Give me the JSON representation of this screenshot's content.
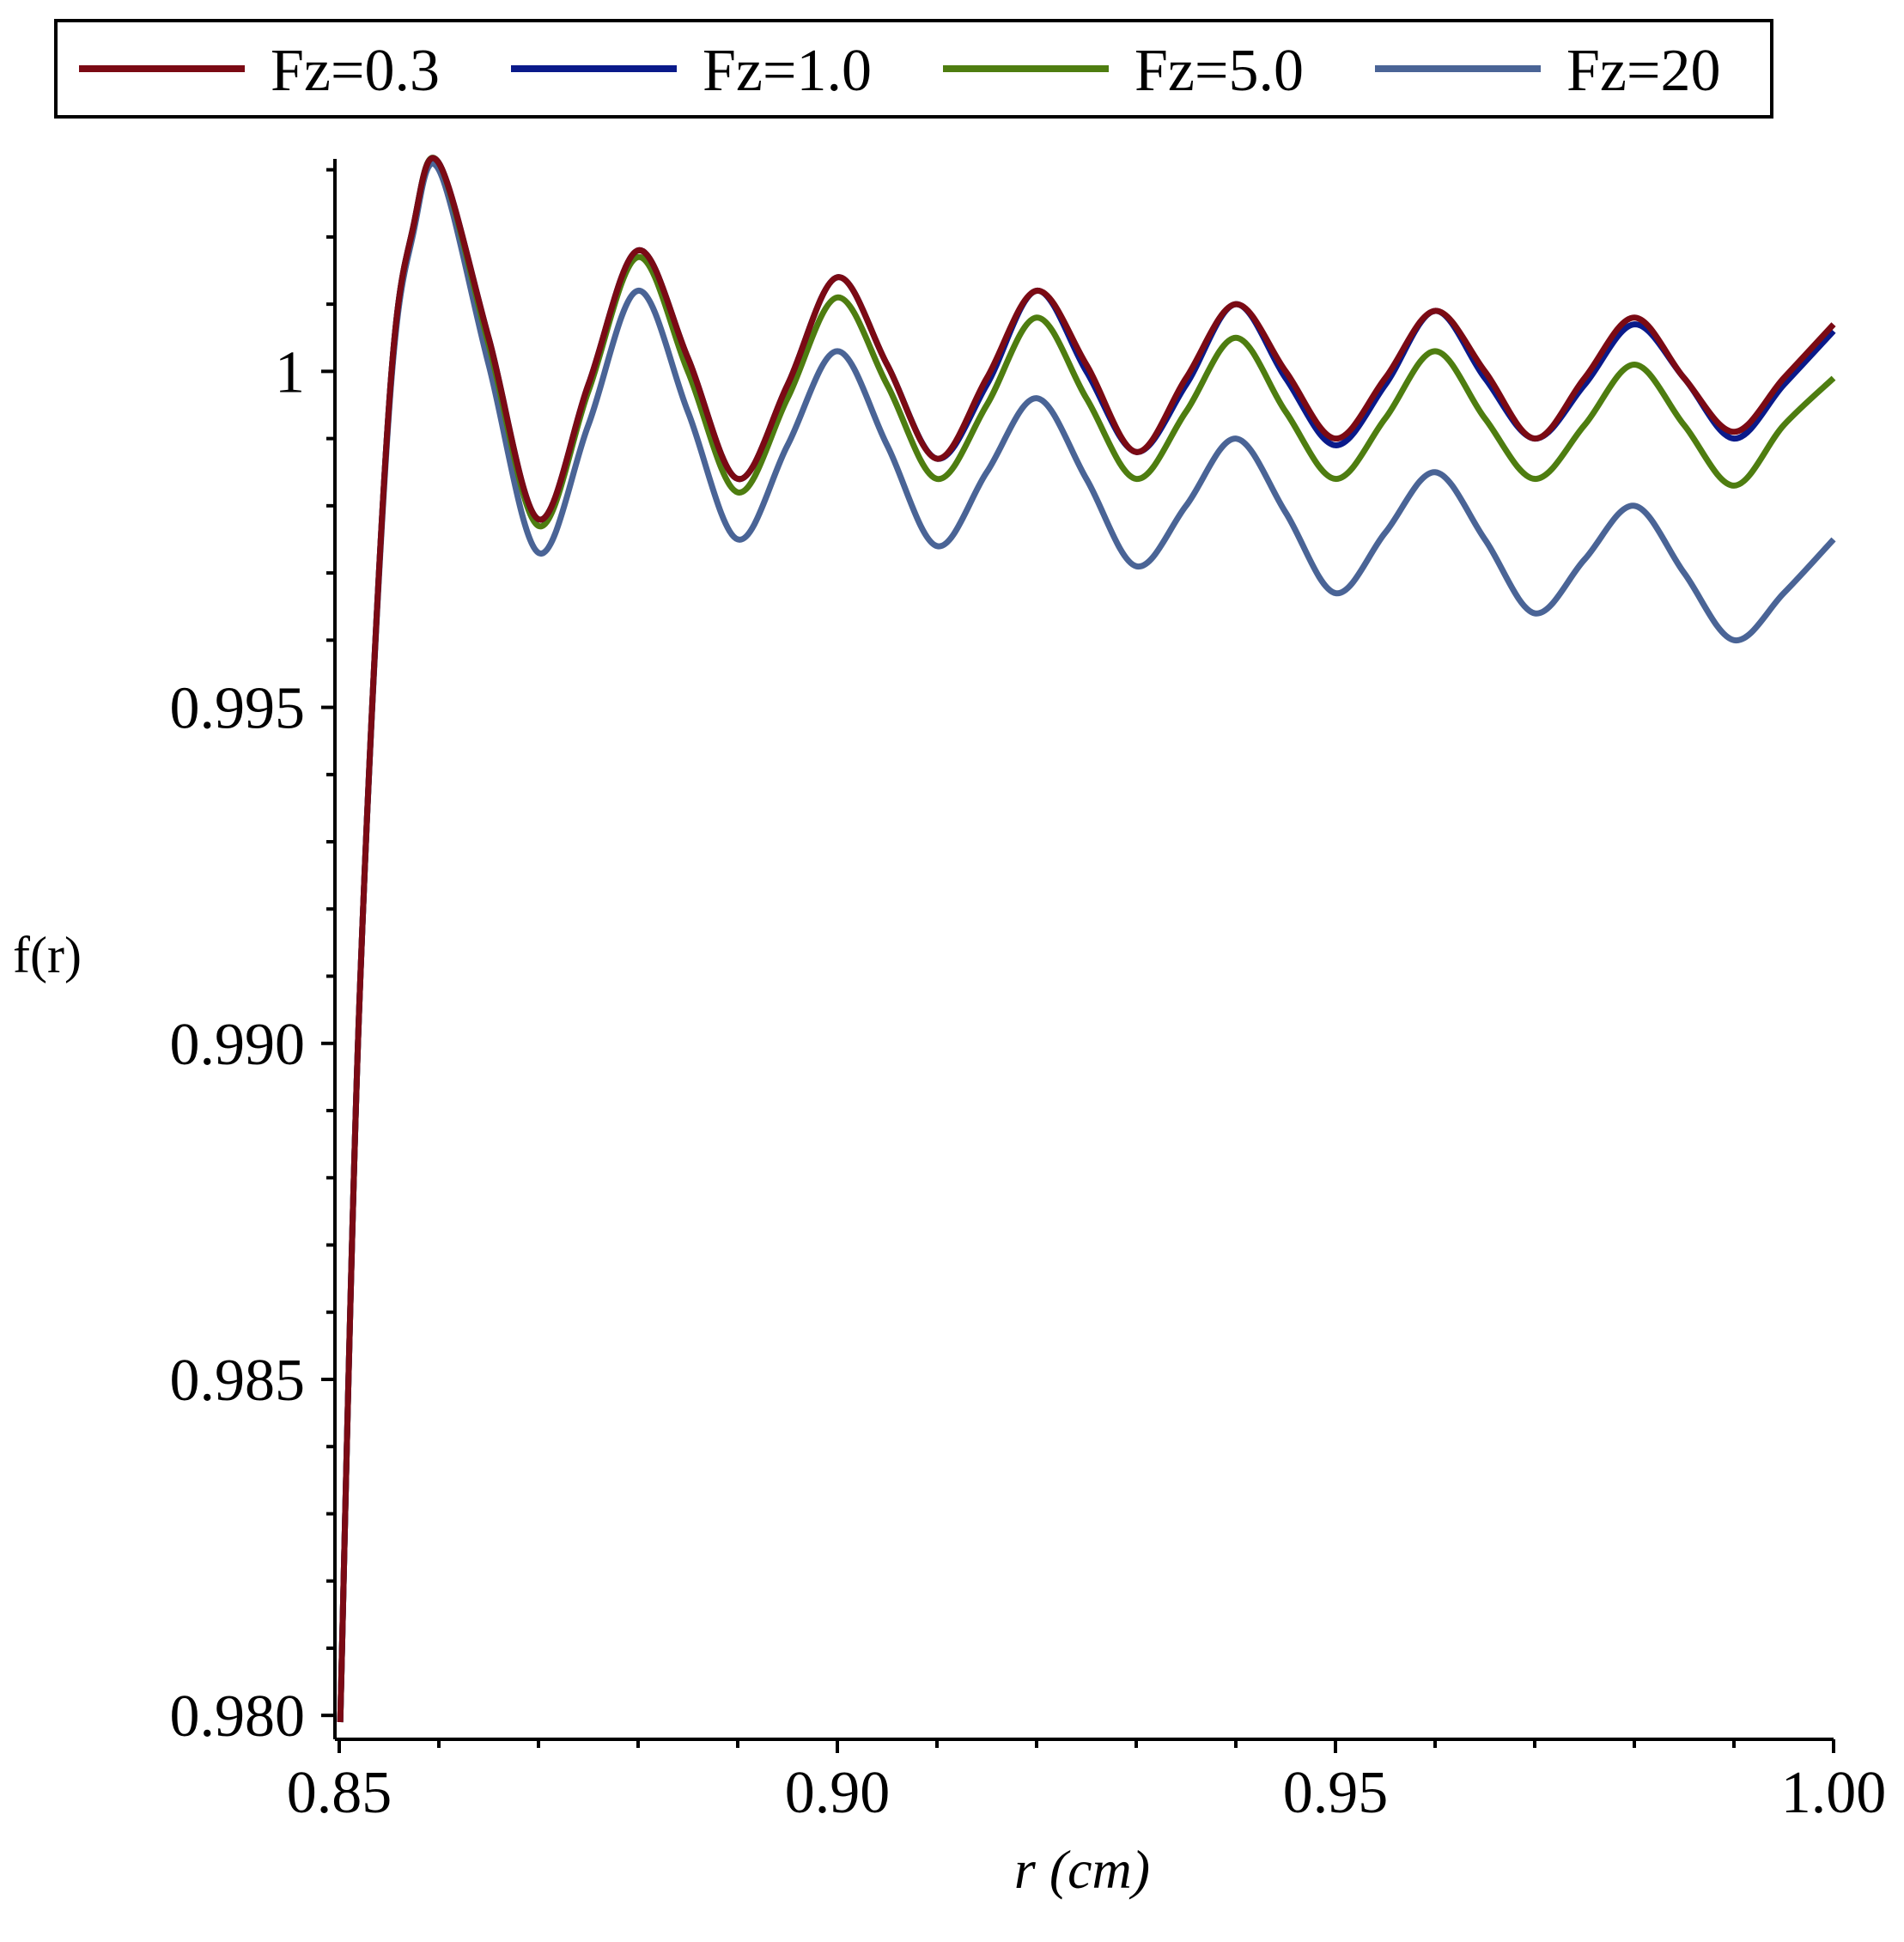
{
  "chart_data": {
    "type": "line",
    "title": "",
    "xlabel": "r (cm)",
    "ylabel": "f(r)",
    "xlim": [
      0.85,
      1.0
    ],
    "ylim": [
      0.9799,
      1.0032
    ],
    "x_ticks": [
      0.85,
      0.9,
      0.95,
      1.0
    ],
    "x_tick_labels": [
      "0.85",
      "0.90",
      "0.95",
      "1.00"
    ],
    "y_ticks": [
      0.98,
      0.985,
      0.99,
      0.995,
      1.0
    ],
    "y_tick_labels": [
      "0.980",
      "0.985",
      "0.990",
      "0.995",
      "1"
    ],
    "legend_position": "top",
    "grid": false,
    "series": [
      {
        "name": "Fz=0.3",
        "color": "#7b0a14",
        "x": [
          0.8501,
          0.852,
          0.855,
          0.8575,
          0.86,
          0.865,
          0.87,
          0.875,
          0.88,
          0.885,
          0.89,
          0.895,
          0.9,
          0.905,
          0.91,
          0.915,
          0.92,
          0.925,
          0.93,
          0.935,
          0.94,
          0.945,
          0.95,
          0.955,
          0.96,
          0.965,
          0.97,
          0.975,
          0.98,
          0.985,
          0.99,
          0.995,
          1.0
        ],
        "y": [
          0.9799,
          0.9905,
          0.9995,
          1.0022,
          1.0031,
          1.0005,
          0.9978,
          0.9998,
          1.0018,
          1.0002,
          0.9984,
          0.9998,
          1.0014,
          1.0001,
          0.9987,
          0.9999,
          1.0012,
          1.0001,
          0.9988,
          0.9999,
          1.001,
          1.0,
          0.999,
          0.9999,
          1.0009,
          1.0,
          0.999,
          0.9999,
          1.0008,
          0.9999,
          0.9991,
          0.9999,
          1.0007
        ]
      },
      {
        "name": "Fz=1.0",
        "color": "#0a1a8a",
        "x": [
          0.8501,
          0.852,
          0.855,
          0.8575,
          0.86,
          0.865,
          0.87,
          0.875,
          0.88,
          0.885,
          0.89,
          0.895,
          0.9,
          0.905,
          0.91,
          0.915,
          0.92,
          0.925,
          0.93,
          0.935,
          0.94,
          0.945,
          0.95,
          0.955,
          0.96,
          0.965,
          0.97,
          0.975,
          0.98,
          0.985,
          0.99,
          0.995,
          1.0
        ],
        "y": [
          0.9799,
          0.9905,
          0.9995,
          1.0022,
          1.0031,
          1.0005,
          0.9978,
          0.9998,
          1.0018,
          1.0002,
          0.9984,
          0.9998,
          1.0014,
          1.0001,
          0.9987,
          0.9998,
          1.0012,
          1.0,
          0.9988,
          0.9998,
          1.001,
          0.9999,
          0.9989,
          0.9998,
          1.0009,
          0.9999,
          0.999,
          0.9998,
          1.0007,
          0.9999,
          0.999,
          0.9998,
          1.0006
        ]
      },
      {
        "name": "Fz=5.0",
        "color": "#4e7d10",
        "x": [
          0.8501,
          0.852,
          0.855,
          0.8575,
          0.86,
          0.865,
          0.87,
          0.875,
          0.88,
          0.885,
          0.89,
          0.895,
          0.9,
          0.905,
          0.91,
          0.915,
          0.92,
          0.925,
          0.93,
          0.935,
          0.94,
          0.945,
          0.95,
          0.955,
          0.96,
          0.965,
          0.97,
          0.975,
          0.98,
          0.985,
          0.99,
          0.995,
          1.0
        ],
        "y": [
          0.9799,
          0.9905,
          0.9995,
          1.0022,
          1.0031,
          1.0004,
          0.9977,
          0.9997,
          1.0017,
          1.0,
          0.9982,
          0.9996,
          1.0011,
          0.9998,
          0.9984,
          0.9995,
          1.0008,
          0.9996,
          0.9984,
          0.9994,
          1.0005,
          0.9994,
          0.9984,
          0.9993,
          1.0003,
          0.9993,
          0.9984,
          0.9992,
          1.0001,
          0.9992,
          0.9983,
          0.9992,
          0.9999
        ]
      },
      {
        "name": "Fz=20",
        "color": "#4a6496",
        "x": [
          0.8501,
          0.852,
          0.855,
          0.8575,
          0.86,
          0.865,
          0.87,
          0.875,
          0.88,
          0.885,
          0.89,
          0.895,
          0.9,
          0.905,
          0.91,
          0.915,
          0.92,
          0.925,
          0.93,
          0.935,
          0.94,
          0.945,
          0.95,
          0.955,
          0.96,
          0.965,
          0.97,
          0.975,
          0.98,
          0.985,
          0.99,
          0.995,
          1.0
        ],
        "y": [
          0.9799,
          0.9905,
          0.9994,
          1.0021,
          1.003,
          1.0001,
          0.9973,
          0.9992,
          1.0012,
          0.9994,
          0.9975,
          0.9989,
          1.0003,
          0.9989,
          0.9974,
          0.9985,
          0.9996,
          0.9984,
          0.9971,
          0.998,
          0.999,
          0.9979,
          0.9967,
          0.9976,
          0.9985,
          0.9975,
          0.9964,
          0.9972,
          0.998,
          0.997,
          0.996,
          0.9967,
          0.9975
        ]
      }
    ]
  }
}
